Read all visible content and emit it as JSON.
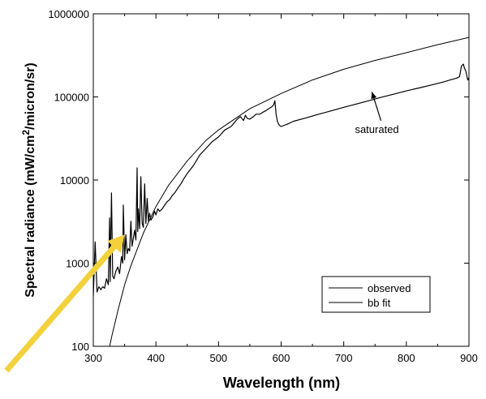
{
  "chart_data": {
    "type": "line",
    "title": "",
    "xlabel": "Wavelength (nm)",
    "ylabel_parts": {
      "main": "Spectral radiance (mW/cm",
      "sup": "2",
      "tail": "/micron/sr)"
    },
    "x_scale": "linear",
    "y_scale": "log",
    "xlim": [
      300,
      900
    ],
    "ylim": [
      100,
      1000000
    ],
    "x_ticks": [
      300,
      400,
      500,
      600,
      700,
      800,
      900
    ],
    "x_tick_labels": [
      "300",
      "400",
      "500",
      "600",
      "700",
      "800",
      "900"
    ],
    "y_ticks": [
      100,
      1000,
      10000,
      100000,
      1000000
    ],
    "y_tick_labels": [
      "100",
      "1000",
      "10000",
      "100000",
      "1000000"
    ],
    "legend": {
      "position": "bottom-right",
      "entries": [
        "observed",
        "bb fit"
      ]
    },
    "annotation": {
      "text": "saturated",
      "x": 753,
      "y": 37000,
      "arrow_to": [
        745,
        120000
      ]
    },
    "highlight_arrow": {
      "color": "#f2d13c",
      "from": [
        285,
        70
      ],
      "to": [
        350,
        2200
      ]
    },
    "series": [
      {
        "name": "observed",
        "x": [
          300,
          303,
          306,
          309,
          312,
          315,
          318,
          321,
          324,
          326,
          327,
          329,
          331,
          333,
          336,
          339,
          342,
          345,
          347,
          348,
          350,
          352,
          354,
          356,
          358,
          360,
          362,
          364,
          366,
          368,
          370,
          371,
          372,
          374,
          376,
          378,
          380,
          382,
          384,
          386,
          388,
          390,
          392,
          395,
          398,
          400,
          403,
          406,
          410,
          414,
          418,
          422,
          426,
          430,
          435,
          440,
          445,
          450,
          460,
          470,
          480,
          490,
          500,
          510,
          520,
          530,
          535,
          540,
          543,
          546,
          550,
          556,
          560,
          566,
          570,
          575,
          580,
          585,
          588,
          590,
          592,
          594,
          596,
          598,
          600,
          610,
          620,
          640,
          660,
          680,
          700,
          720,
          740,
          760,
          780,
          800,
          820,
          840,
          860,
          870,
          880,
          885,
          888,
          891,
          893,
          895,
          898,
          900
        ],
        "y": [
          400,
          1800,
          450,
          520,
          480,
          520,
          500,
          650,
          550,
          3500,
          600,
          7000,
          700,
          650,
          800,
          900,
          750,
          1200,
          1000,
          5000,
          1100,
          2200,
          1300,
          1500,
          1400,
          3200,
          1600,
          2000,
          2500,
          1900,
          14000,
          2400,
          4500,
          2600,
          11000,
          3000,
          2700,
          9000,
          3000,
          6000,
          3200,
          4000,
          3300,
          3600,
          4200,
          3800,
          4500,
          4200,
          4500,
          5000,
          5500,
          5800,
          6500,
          7000,
          8000,
          9000,
          10500,
          12000,
          15000,
          20000,
          24000,
          29000,
          33000,
          40000,
          44000,
          54000,
          58000,
          52000,
          60000,
          55000,
          54000,
          58000,
          62000,
          62000,
          65000,
          68000,
          72000,
          76000,
          80000,
          90000,
          62000,
          51000,
          47000,
          45000,
          44000,
          47000,
          51000,
          56000,
          62000,
          68000,
          75000,
          82000,
          90000,
          99000,
          108000,
          118000,
          128000,
          139000,
          152000,
          160000,
          168000,
          175000,
          235000,
          248000,
          220000,
          205000,
          160000,
          170000
        ]
      },
      {
        "name": "bb fit",
        "x": [
          320,
          330,
          340,
          350,
          360,
          380,
          400,
          420,
          450,
          480,
          500,
          550,
          600,
          650,
          700,
          750,
          800,
          850,
          900
        ],
        "y": [
          60,
          138,
          282,
          550,
          930,
          2300,
          4800,
          8600,
          17000,
          30000,
          40000,
          72000,
          110000,
          160000,
          215000,
          275000,
          340000,
          425000,
          520000
        ]
      }
    ]
  }
}
